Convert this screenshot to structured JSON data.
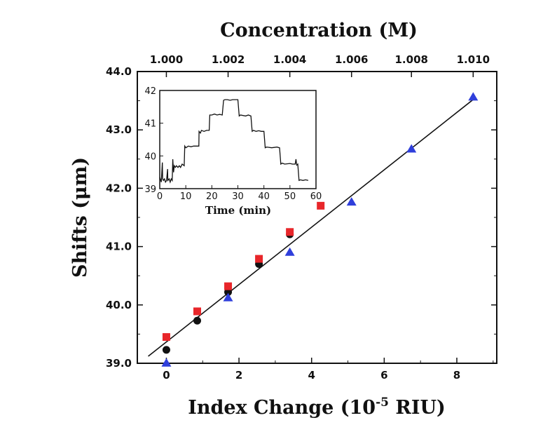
{
  "chart_data": [
    {
      "type": "scatter",
      "title": "",
      "xlabel_pre": "Index Change (10",
      "xlabel_sup": "-5",
      "xlabel_post": " RIU)",
      "ylabel": "Shifts (μm)",
      "top_xlabel": "Concentration (M)",
      "xlim": [
        -0.8,
        9.1
      ],
      "ylim": [
        39.0,
        44.0
      ],
      "xticks": [
        "0",
        "2",
        "4",
        "6",
        "8"
      ],
      "xtick_values": [
        0,
        2,
        4,
        6,
        8
      ],
      "yticks": [
        "39.0",
        "40.0",
        "41.0",
        "42.0",
        "43.0",
        "44.0"
      ],
      "ytick_values": [
        39.0,
        40.0,
        41.0,
        42.0,
        43.0,
        44.0
      ],
      "top_xticks": [
        "1.000",
        "1.002",
        "1.004",
        "1.006",
        "1.008",
        "1.010"
      ],
      "top_xtick_positions": [
        0.0,
        1.7,
        3.4,
        5.1,
        6.75,
        8.45
      ],
      "series": [
        {
          "color": "#111111",
          "marker": "circle",
          "x": [
            0.0,
            0.85,
            1.7,
            2.55,
            3.4
          ],
          "y": [
            39.23,
            39.73,
            40.22,
            40.7,
            41.21
          ]
        },
        {
          "color": "#e8262a",
          "marker": "square",
          "x": [
            0.0,
            0.85,
            1.7,
            2.55,
            3.4,
            4.25
          ],
          "y": [
            39.45,
            39.89,
            40.32,
            40.79,
            41.25,
            41.7
          ]
        },
        {
          "color": "#2f3fdb",
          "marker": "triangle",
          "x": [
            0.0,
            1.7,
            3.4,
            5.1,
            6.75,
            8.45
          ],
          "y": [
            39.0,
            40.12,
            40.9,
            41.76,
            42.67,
            43.56
          ]
        }
      ],
      "fit_line": {
        "x": [
          -0.5,
          8.45
        ],
        "y": [
          39.12,
          43.52
        ]
      }
    },
    {
      "type": "line",
      "title": "",
      "xlabel": "Time (min)",
      "ylabel": "",
      "xlim": [
        0,
        60
      ],
      "ylim": [
        39,
        42
      ],
      "xticks": [
        "0",
        "10",
        "20",
        "30",
        "40",
        "50",
        "60"
      ],
      "xtick_values": [
        0,
        10,
        20,
        30,
        40,
        50,
        60
      ],
      "yticks": [
        "39",
        "40",
        "41",
        "42"
      ],
      "ytick_values": [
        39,
        40,
        41,
        42
      ],
      "series": [
        {
          "color": "#111111",
          "x": [
            0,
            0.6,
            1.0,
            1.1,
            1.4,
            1.8,
            2.2,
            2.6,
            3.0,
            3.1,
            3.6,
            4.0,
            4.4,
            4.8,
            5.0,
            5.3,
            5.6,
            6.0,
            6.4,
            7.0,
            7.5,
            8.0,
            8.6,
            9.4,
            9.6,
            10,
            11,
            12,
            13,
            14,
            15,
            15.1,
            15.6,
            16,
            17,
            18,
            19,
            19.2,
            20,
            21,
            22,
            23,
            24,
            24.5,
            25,
            26,
            27,
            28,
            29,
            30,
            30.5,
            31,
            33,
            34,
            35,
            35.5,
            36,
            37,
            38,
            39,
            40,
            40.5,
            41,
            43,
            45,
            46,
            46.5,
            47,
            48,
            50,
            51,
            52,
            52.3,
            52.6,
            53,
            53.5,
            54,
            55,
            56,
            57
          ],
          "y": [
            39.35,
            39.2,
            39.8,
            39.3,
            39.25,
            39.3,
            39.2,
            39.25,
            39.6,
            39.25,
            39.3,
            39.2,
            39.3,
            39.25,
            39.9,
            39.5,
            39.7,
            39.65,
            39.7,
            39.65,
            39.7,
            39.65,
            39.75,
            39.7,
            40.3,
            40.25,
            40.3,
            40.28,
            40.3,
            40.3,
            40.3,
            40.75,
            40.7,
            40.78,
            40.75,
            40.78,
            40.78,
            41.25,
            41.25,
            41.28,
            41.25,
            41.27,
            41.25,
            41.7,
            41.72,
            41.72,
            41.7,
            41.72,
            41.72,
            41.72,
            41.22,
            41.25,
            41.22,
            41.25,
            41.22,
            40.75,
            40.78,
            40.75,
            40.77,
            40.75,
            40.75,
            40.25,
            40.27,
            40.25,
            40.27,
            40.25,
            39.75,
            39.78,
            39.75,
            39.77,
            39.75,
            39.75,
            39.9,
            39.72,
            39.75,
            39.25,
            39.27,
            39.25,
            39.27,
            39.25
          ]
        }
      ]
    }
  ]
}
